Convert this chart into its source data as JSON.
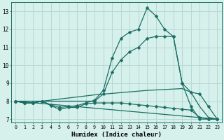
{
  "xlabel": "Humidex (Indice chaleur)",
  "bg_color": "#d6f0ec",
  "grid_color": "#b8d8d4",
  "line_color": "#1a6e64",
  "xlim": [
    -0.5,
    23.5
  ],
  "ylim": [
    6.8,
    13.5
  ],
  "yticks": [
    7,
    8,
    9,
    10,
    11,
    12,
    13
  ],
  "xticks": [
    0,
    1,
    2,
    3,
    4,
    5,
    6,
    7,
    8,
    9,
    10,
    11,
    12,
    13,
    14,
    15,
    16,
    17,
    18,
    19,
    20,
    21,
    22,
    23
  ],
  "curves": [
    {
      "x": [
        0,
        1,
        2,
        3,
        4,
        5,
        6,
        7,
        8,
        9,
        10,
        11,
        12,
        13,
        14,
        15,
        16,
        17,
        18,
        19,
        20,
        21,
        22,
        23
      ],
      "y": [
        8.0,
        7.9,
        7.9,
        8.0,
        7.8,
        7.65,
        7.7,
        7.75,
        7.9,
        8.05,
        8.6,
        10.4,
        11.5,
        11.85,
        12.0,
        13.2,
        12.75,
        12.0,
        11.6,
        9.0,
        7.7,
        7.0,
        7.0,
        7.0
      ],
      "marker": "D",
      "markersize": 2.5,
      "lw": 0.9
    },
    {
      "x": [
        0,
        1,
        2,
        3,
        9,
        10,
        11,
        12,
        13,
        14,
        15,
        16,
        17,
        18,
        19,
        20,
        21,
        22,
        23
      ],
      "y": [
        8.0,
        7.9,
        7.9,
        8.0,
        8.0,
        8.4,
        9.6,
        10.3,
        10.75,
        11.0,
        11.5,
        11.6,
        11.6,
        11.6,
        9.0,
        8.5,
        8.4,
        7.7,
        7.0
      ],
      "marker": "D",
      "markersize": 2.5,
      "lw": 0.9
    },
    {
      "x": [
        0,
        1,
        2,
        3,
        4,
        5,
        6,
        7,
        8,
        9,
        10,
        11,
        12,
        13,
        14,
        15,
        16,
        17,
        18,
        19,
        20,
        21,
        22,
        23
      ],
      "y": [
        8.0,
        7.9,
        7.9,
        8.0,
        7.75,
        7.55,
        7.65,
        7.65,
        7.85,
        7.9,
        7.9,
        7.9,
        7.9,
        7.85,
        7.8,
        7.75,
        7.7,
        7.65,
        7.6,
        7.55,
        7.5,
        7.1,
        7.0,
        7.0
      ],
      "marker": "D",
      "markersize": 2.5,
      "lw": 0.9
    },
    {
      "x": [
        0,
        23
      ],
      "y": [
        8.0,
        7.0
      ],
      "marker": null,
      "lw": 0.9
    },
    {
      "x": [
        0,
        3,
        9,
        15,
        19,
        20,
        21,
        22,
        23
      ],
      "y": [
        8.0,
        8.0,
        8.35,
        8.6,
        8.7,
        8.5,
        7.7,
        7.1,
        7.0
      ],
      "marker": null,
      "lw": 0.9
    }
  ]
}
